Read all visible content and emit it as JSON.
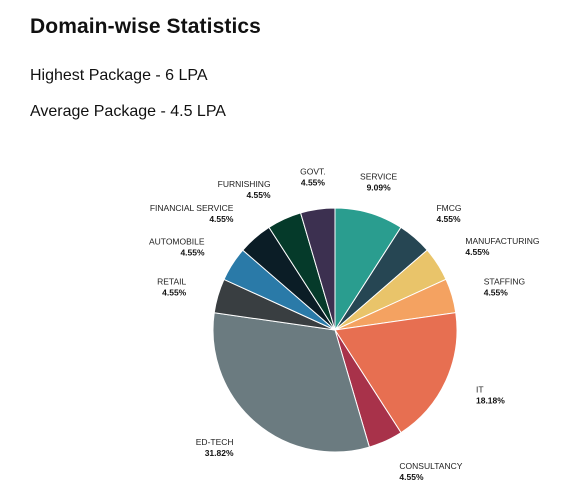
{
  "header": {
    "title": "Domain-wise Statistics",
    "highest_package": "Highest Package - 6 LPA",
    "average_package": "Average Package - 4.5 LPA"
  },
  "chart_data": {
    "type": "pie",
    "title": "",
    "start": "top",
    "direction": "clockwise",
    "slices": [
      {
        "label": "SERVICE",
        "value": 9.09,
        "display": "9.09%",
        "color": "#2a9d8f"
      },
      {
        "label": "FMCG",
        "value": 4.55,
        "display": "4.55%",
        "color": "#264653"
      },
      {
        "label": "MANUFACTURING",
        "value": 4.55,
        "display": "4.55%",
        "color": "#e9c46a"
      },
      {
        "label": "STAFFING",
        "value": 4.55,
        "display": "4.55%",
        "color": "#f4a261"
      },
      {
        "label": "IT",
        "value": 18.18,
        "display": "18.18%",
        "color": "#e76f51"
      },
      {
        "label": "CONSULTANCY",
        "value": 4.55,
        "display": "4.55%",
        "color": "#a8324a"
      },
      {
        "label": "ED-TECH",
        "value": 31.82,
        "display": "31.82%",
        "color": "#6b7b80"
      },
      {
        "label": "RETAIL",
        "value": 4.55,
        "display": "4.55%",
        "color": "#393e41"
      },
      {
        "label": "AUTOMOBILE",
        "value": 4.55,
        "display": "4.55%",
        "color": "#2a7aa8"
      },
      {
        "label": "FINANCIAL SERVICE",
        "value": 4.55,
        "display": "4.55%",
        "color": "#0b1d26"
      },
      {
        "label": "FURNISHING",
        "value": 4.55,
        "display": "4.55%",
        "color": "#053a2a"
      },
      {
        "label": "GOVT.",
        "value": 4.55,
        "display": "4.55%",
        "color": "#3c3050"
      }
    ]
  }
}
